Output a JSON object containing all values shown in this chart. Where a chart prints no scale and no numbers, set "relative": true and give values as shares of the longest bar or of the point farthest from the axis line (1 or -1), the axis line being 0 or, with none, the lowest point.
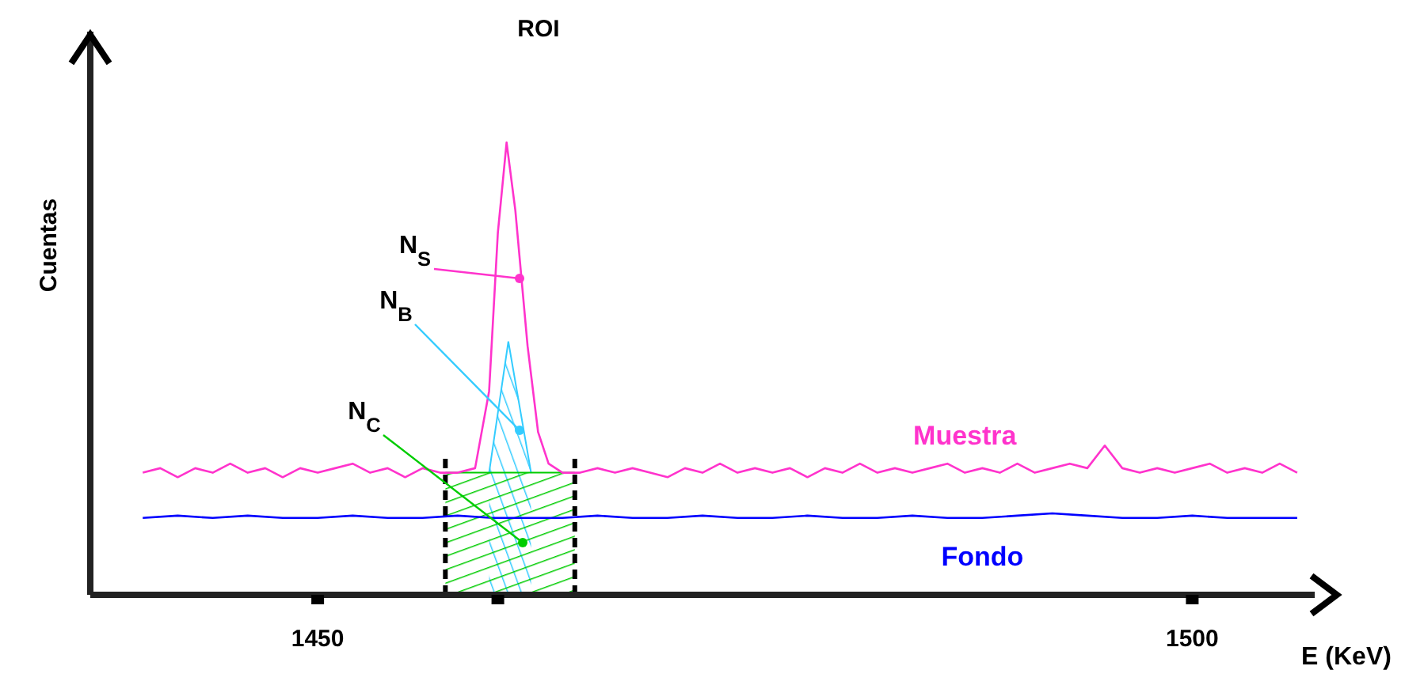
{
  "chart_data": {
    "type": "line",
    "relative": true,
    "xlabel": "E (KeV)",
    "ylabel": "Cuentas",
    "xlim": [
      1437,
      1507
    ],
    "xticks": [
      1450,
      {
        "value": 1460.3,
        "label": null
      },
      1500
    ],
    "marker": "none",
    "series": [
      {
        "name": "Muestra",
        "color": "#ff33cc",
        "x": [
          1440,
          1441,
          1442,
          1443,
          1444,
          1445,
          1446,
          1447,
          1448,
          1449,
          1450,
          1451,
          1452,
          1453,
          1454,
          1455,
          1456,
          1457,
          1458,
          1459,
          1459.8,
          1460.3,
          1460.8,
          1461.3,
          1462,
          1462.6,
          1463.2,
          1464,
          1465,
          1466,
          1467,
          1468,
          1469,
          1470,
          1471,
          1472,
          1473,
          1474,
          1475,
          1476,
          1477,
          1478,
          1479,
          1480,
          1481,
          1482,
          1483,
          1484,
          1485,
          1486,
          1487,
          1488,
          1489,
          1490,
          1491,
          1492,
          1493,
          1494,
          1495,
          1496,
          1497,
          1498,
          1499,
          1500,
          1501,
          1502,
          1503,
          1504,
          1505,
          1506
        ],
        "values": [
          0.27,
          0.28,
          0.26,
          0.28,
          0.27,
          0.29,
          0.27,
          0.28,
          0.26,
          0.28,
          0.27,
          0.28,
          0.29,
          0.27,
          0.28,
          0.26,
          0.28,
          0.27,
          0.27,
          0.28,
          0.45,
          0.8,
          1.0,
          0.85,
          0.55,
          0.36,
          0.29,
          0.27,
          0.27,
          0.28,
          0.27,
          0.28,
          0.27,
          0.26,
          0.28,
          0.27,
          0.29,
          0.27,
          0.28,
          0.27,
          0.28,
          0.26,
          0.28,
          0.27,
          0.29,
          0.27,
          0.28,
          0.27,
          0.28,
          0.29,
          0.27,
          0.28,
          0.27,
          0.29,
          0.27,
          0.28,
          0.29,
          0.28,
          0.33,
          0.28,
          0.27,
          0.28,
          0.27,
          0.28,
          0.29,
          0.27,
          0.28,
          0.27,
          0.29,
          0.27
        ]
      },
      {
        "name": "Fondo",
        "color": "#0000ff",
        "x": [
          1440,
          1442,
          1444,
          1446,
          1448,
          1450,
          1452,
          1454,
          1456,
          1458,
          1460,
          1462,
          1464,
          1466,
          1468,
          1470,
          1472,
          1474,
          1476,
          1478,
          1480,
          1482,
          1484,
          1486,
          1488,
          1490,
          1492,
          1494,
          1496,
          1498,
          1500,
          1502,
          1504,
          1506
        ],
        "values": [
          0.17,
          0.175,
          0.17,
          0.175,
          0.17,
          0.17,
          0.175,
          0.17,
          0.17,
          0.175,
          0.17,
          0.17,
          0.17,
          0.175,
          0.17,
          0.17,
          0.175,
          0.17,
          0.17,
          0.175,
          0.17,
          0.17,
          0.175,
          0.17,
          0.17,
          0.175,
          0.18,
          0.175,
          0.17,
          0.17,
          0.175,
          0.17,
          0.17,
          0.17
        ]
      },
      {
        "type": "area",
        "color": "#33ccff",
        "x": [
          1459.8,
          1460.9,
          1462.2
        ],
        "values": [
          0.27,
          0.56,
          0.27
        ]
      },
      {
        "type": "area",
        "color": "#00cc00",
        "x": [
          1457.3,
          1464.7
        ],
        "values": [
          0.27,
          0.27
        ]
      }
    ],
    "ref_lines": [
      {
        "axis": "x",
        "value": 1457.3,
        "line_style": "dashed",
        "color": "#000000"
      },
      {
        "axis": "x",
        "value": 1464.7,
        "line_style": "dashed",
        "color": "#000000"
      }
    ],
    "annotations": [
      "ROI",
      "N$_{S}$",
      "N$_{B}$",
      "N$_{C}$"
    ]
  }
}
